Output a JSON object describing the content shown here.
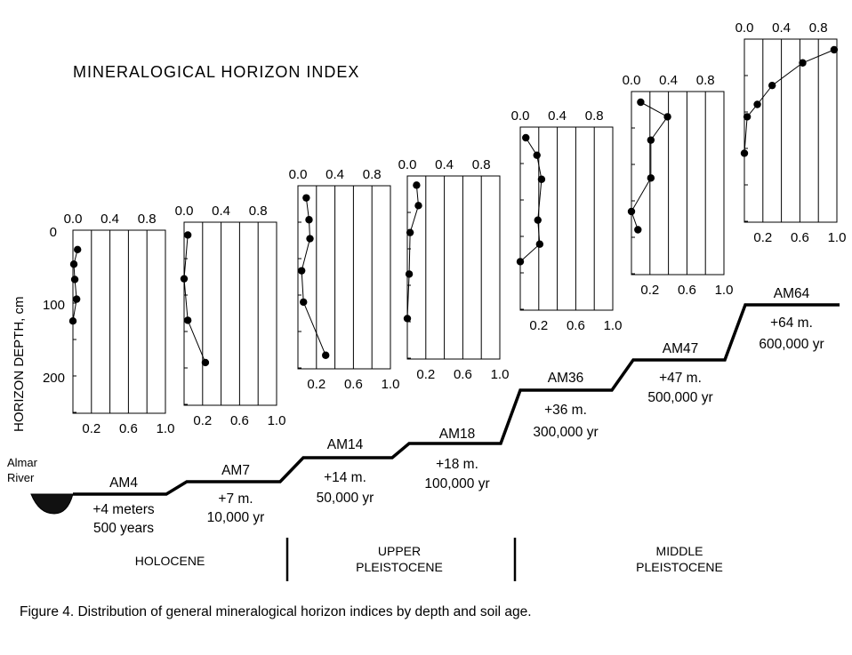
{
  "title": "MINERALOGICAL HORIZON INDEX",
  "caption": "Figure 4. Distribution of general mineralogical horizon indices by depth and soil age.",
  "y_axis": {
    "label": "HORIZON DEPTH, cm",
    "ticks": [
      "0",
      "100",
      "200"
    ]
  },
  "river": {
    "line1": "Almar",
    "line2": "River"
  },
  "epochs": [
    {
      "line1": "HOLOCENE",
      "line2": ""
    },
    {
      "line1": "UPPER",
      "line2": "PLEISTOCENE"
    },
    {
      "line1": "MIDDLE",
      "line2": "PLEISTOCENE"
    }
  ],
  "colors": {
    "ink": "#000000",
    "river_water": "#111111",
    "background": "#ffffff"
  },
  "chart_data": [
    {
      "type": "scatter",
      "name": "AM4",
      "height": "+4 meters",
      "age": "500 years",
      "top_ticks": [
        "0.0",
        "0.4",
        "0.8"
      ],
      "bottom_ticks": [
        "0.2",
        "0.6",
        "1.0"
      ],
      "xlim": [
        0,
        1
      ],
      "points": [
        {
          "x": 0.05,
          "depth": 12
        },
        {
          "x": 0.01,
          "depth": 32
        },
        {
          "x": 0.02,
          "depth": 53
        },
        {
          "x": 0.04,
          "depth": 80
        },
        {
          "x": 0.0,
          "depth": 110
        }
      ]
    },
    {
      "type": "scatter",
      "name": "AM7",
      "height": "+7 m.",
      "age": "10,000 yr",
      "top_ticks": [
        "0.0",
        "0.4",
        "0.8"
      ],
      "bottom_ticks": [
        "0.2",
        "0.6",
        "1.0"
      ],
      "xlim": [
        0,
        1
      ],
      "points": [
        {
          "x": 0.04,
          "depth": 3
        },
        {
          "x": 0.0,
          "depth": 63
        },
        {
          "x": 0.04,
          "depth": 120
        },
        {
          "x": 0.23,
          "depth": 178
        }
      ]
    },
    {
      "type": "scatter",
      "name": "AM14",
      "height": "+14 m.",
      "age": "50,000 yr",
      "top_ticks": [
        "0.0",
        "0.4",
        "0.8"
      ],
      "bottom_ticks": [
        "0.2",
        "0.6",
        "1.0"
      ],
      "xlim": [
        0,
        1
      ],
      "points": [
        {
          "x": 0.09,
          "depth": 2
        },
        {
          "x": 0.12,
          "depth": 32
        },
        {
          "x": 0.13,
          "depth": 58
        },
        {
          "x": 0.04,
          "depth": 102
        },
        {
          "x": 0.06,
          "depth": 145
        },
        {
          "x": 0.3,
          "depth": 218
        }
      ]
    },
    {
      "type": "scatter",
      "name": "AM18",
      "height": "+18 m.",
      "age": "100,000 yr",
      "top_ticks": [
        "0.0",
        "0.4",
        "0.8"
      ],
      "bottom_ticks": [
        "0.2",
        "0.6",
        "1.0"
      ],
      "xlim": [
        0,
        1
      ],
      "points": [
        {
          "x": 0.1,
          "depth": -2
        },
        {
          "x": 0.12,
          "depth": 26
        },
        {
          "x": 0.03,
          "depth": 63
        },
        {
          "x": 0.02,
          "depth": 120
        },
        {
          "x": 0.0,
          "depth": 181
        }
      ]
    },
    {
      "type": "scatter",
      "name": "AM36",
      "height": "+36 m.",
      "age": "300,000 yr",
      "top_ticks": [
        "0.0",
        "0.4",
        "0.8"
      ],
      "bottom_ticks": [
        "0.2",
        "0.6",
        "1.0"
      ],
      "xlim": [
        0,
        1
      ],
      "points": [
        {
          "x": 0.06,
          "depth": 0
        },
        {
          "x": 0.18,
          "depth": 24
        },
        {
          "x": 0.23,
          "depth": 57
        },
        {
          "x": 0.19,
          "depth": 113
        },
        {
          "x": 0.21,
          "depth": 146
        },
        {
          "x": 0.0,
          "depth": 170
        }
      ]
    },
    {
      "type": "scatter",
      "name": "AM47",
      "height": "+47 m.",
      "age": "500,000 yr",
      "top_ticks": [
        "0.0",
        "0.4",
        "0.8"
      ],
      "bottom_ticks": [
        "0.2",
        "0.6",
        "1.0"
      ],
      "xlim": [
        0,
        1
      ],
      "points": [
        {
          "x": 0.1,
          "depth": 0
        },
        {
          "x": 0.39,
          "depth": 20
        },
        {
          "x": 0.21,
          "depth": 52
        },
        {
          "x": 0.21,
          "depth": 104
        },
        {
          "x": 0.0,
          "depth": 150
        },
        {
          "x": 0.07,
          "depth": 175
        }
      ]
    },
    {
      "type": "scatter",
      "name": "AM64",
      "height": "+64 m.",
      "age": "600,000 yr",
      "top_ticks": [
        "0.0",
        "0.4",
        "0.8"
      ],
      "bottom_ticks": [
        "0.2",
        "0.6",
        "1.0"
      ],
      "xlim": [
        0,
        1
      ],
      "points": [
        {
          "x": 0.97,
          "depth": 0
        },
        {
          "x": 0.63,
          "depth": 18
        },
        {
          "x": 0.3,
          "depth": 49
        },
        {
          "x": 0.14,
          "depth": 75
        },
        {
          "x": 0.03,
          "depth": 92
        },
        {
          "x": 0.0,
          "depth": 142
        }
      ]
    }
  ]
}
